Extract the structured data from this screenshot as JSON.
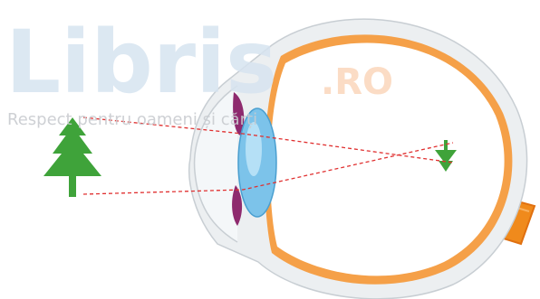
{
  "watermark": {
    "brand": "Libris",
    "domain": ".RO",
    "tagline": "Respect pentru oameni și cărți"
  }
}
